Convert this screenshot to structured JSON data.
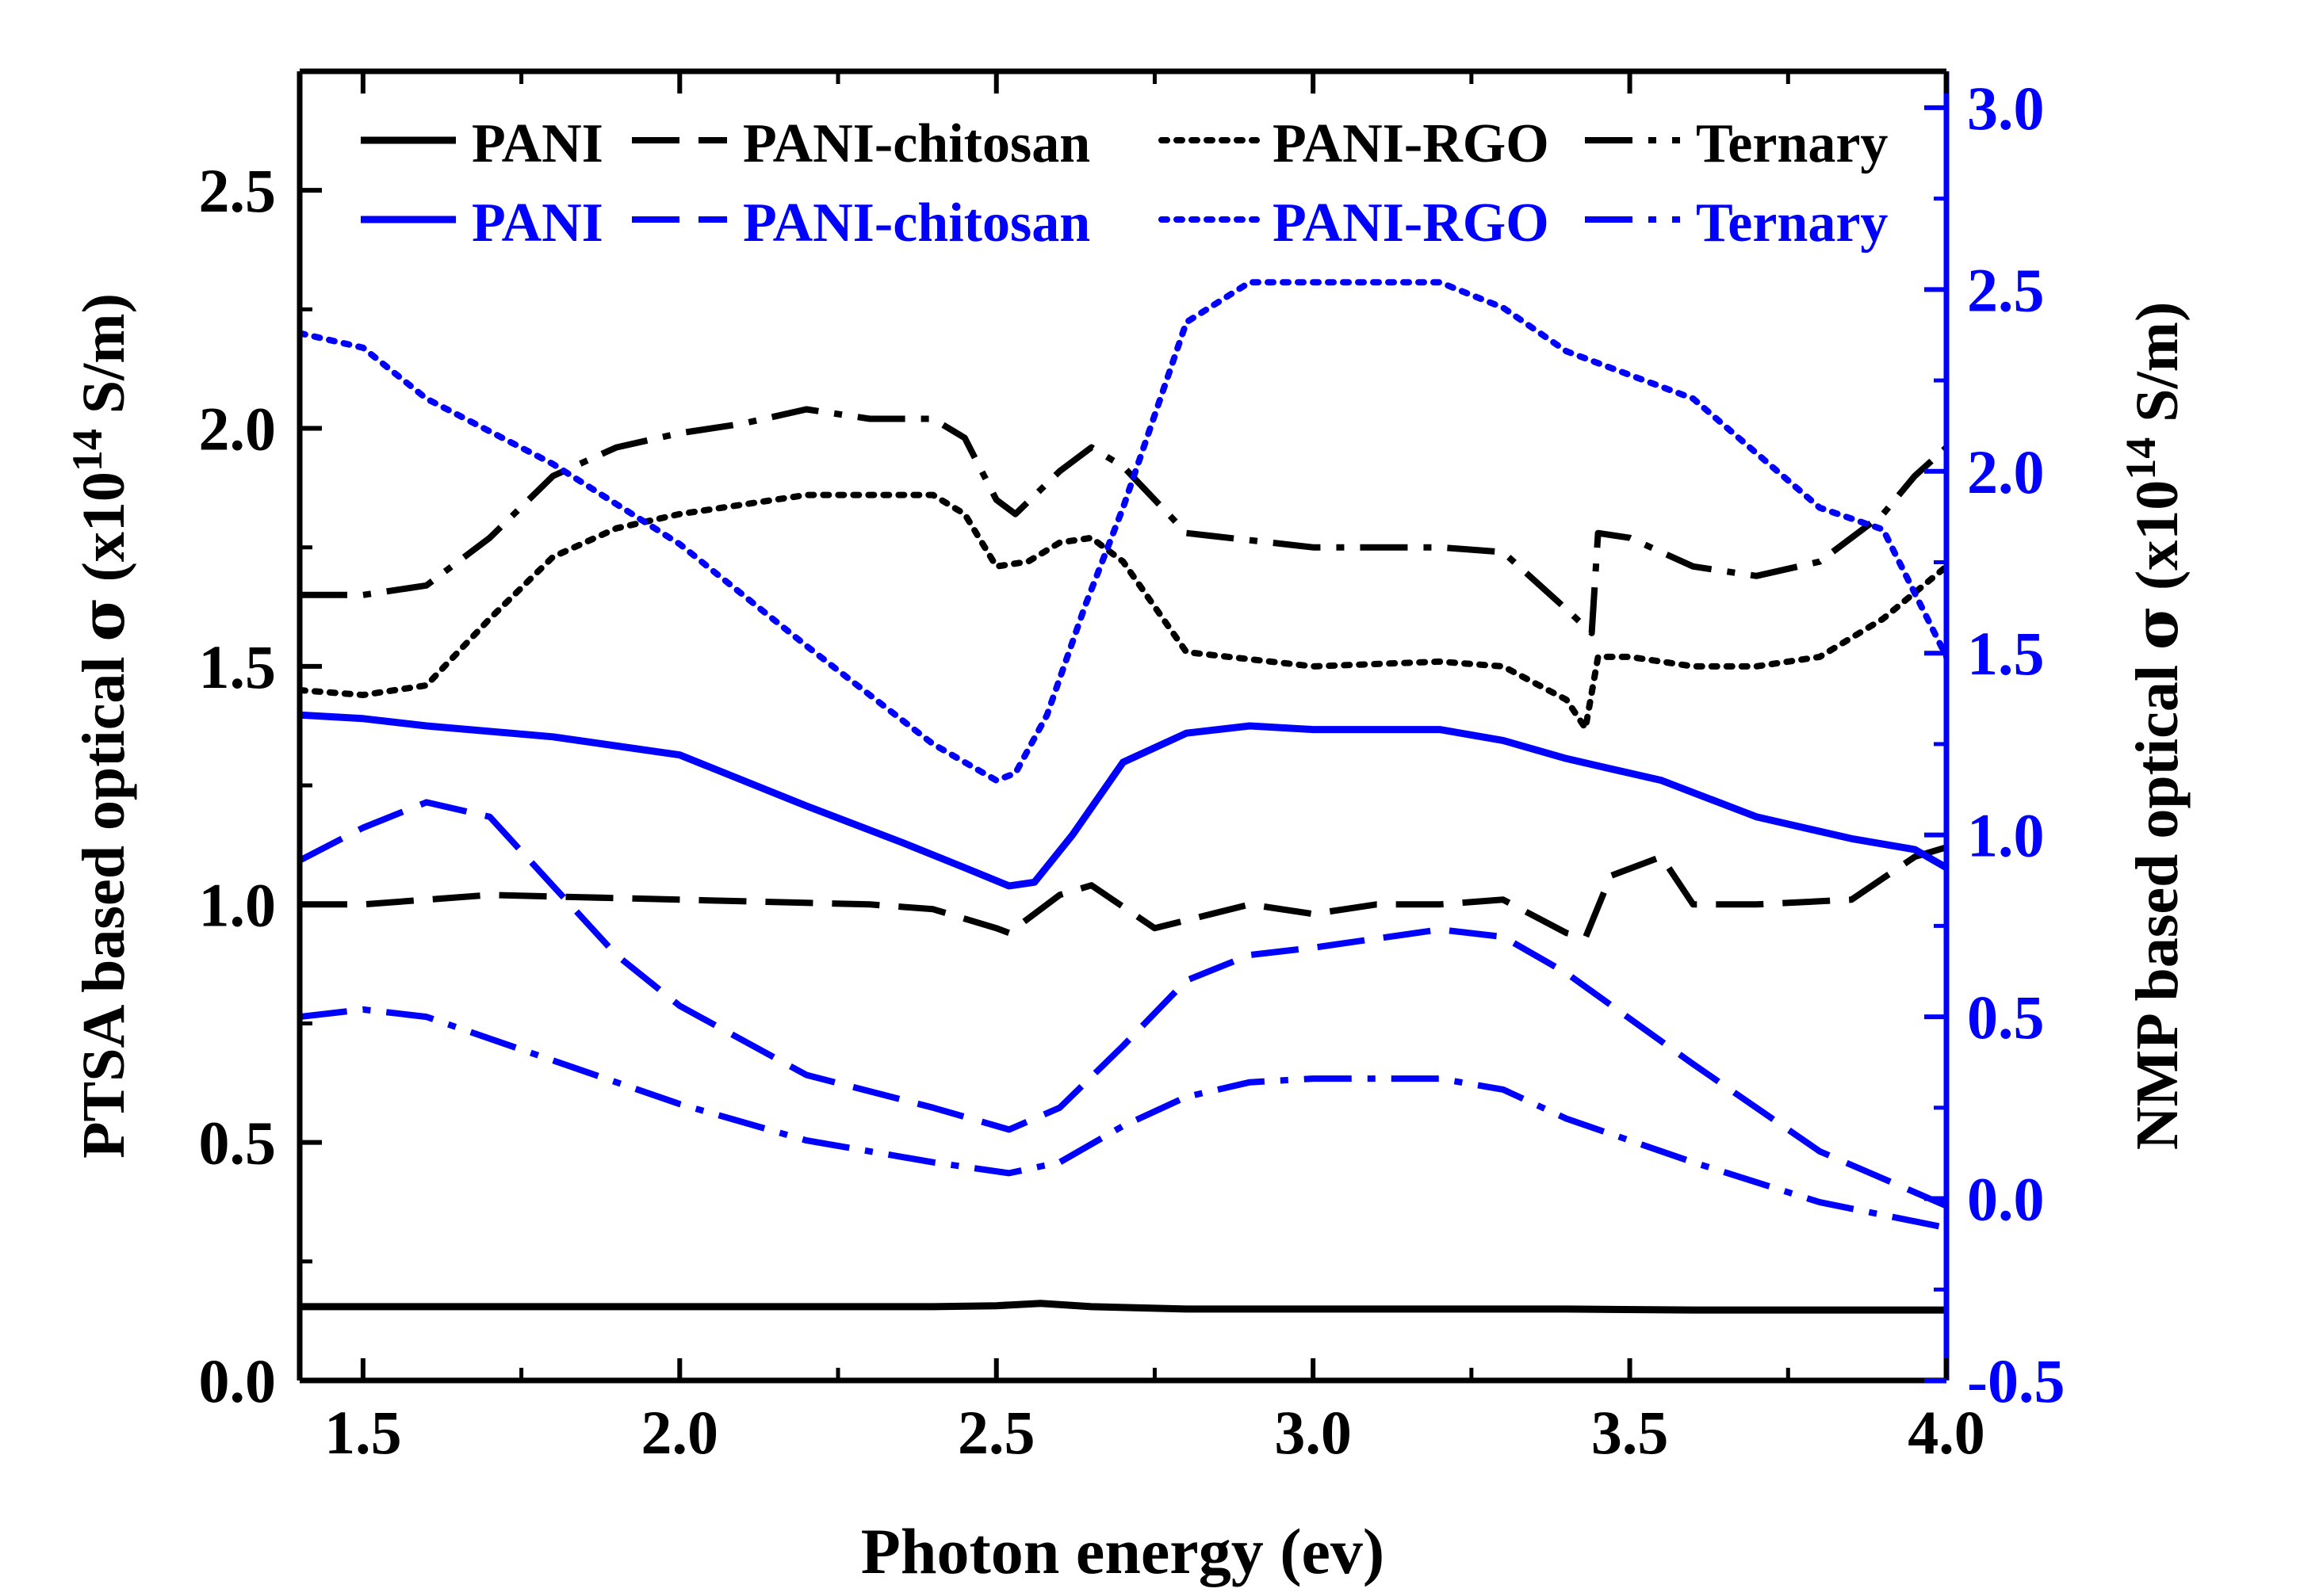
{
  "chart_data": {
    "type": "line",
    "xlabel": "Photon energy (ev)",
    "ylabel_left": {
      "pre": "PTSA based optical ",
      "sym": "σ",
      "mid": " (x10",
      "sup": "14",
      "post": " S/m)"
    },
    "ylabel_right": {
      "pre": "NMP based optical ",
      "sym": "σ",
      "mid": " (x10",
      "sup": "14",
      "post": " S/m)"
    },
    "xlim": [
      1.4,
      4.0
    ],
    "ylim_left": [
      0.0,
      2.75
    ],
    "ylim_right": [
      -0.5,
      3.1
    ],
    "x_ticks": [
      1.5,
      2.0,
      2.5,
      3.0,
      3.5,
      4.0
    ],
    "x_tick_labels": [
      "1.5",
      "2.0",
      "2.5",
      "3.0",
      "3.5",
      "4.0"
    ],
    "y_left_ticks": [
      0.0,
      0.5,
      1.0,
      1.5,
      2.0,
      2.5
    ],
    "y_left_tick_labels": [
      "0.0",
      "0.5",
      "1.0",
      "1.5",
      "2.0",
      "2.5"
    ],
    "y_right_ticks": [
      -0.5,
      0.0,
      0.5,
      1.0,
      1.5,
      2.0,
      2.5,
      3.0
    ],
    "y_right_tick_labels": [
      "-0.5",
      "0.0",
      "0.5",
      "1.0",
      "1.5",
      "2.0",
      "2.5",
      "3.0"
    ],
    "legend_position": "top",
    "colors": {
      "left_axis": "#000000",
      "right_axis": "#0000ff"
    },
    "series": [
      {
        "name": "PANI",
        "axis": "left",
        "color": "#000000",
        "style": "solid",
        "x": [
          1.4,
          1.6,
          1.8,
          2.0,
          2.2,
          2.4,
          2.5,
          2.57,
          2.65,
          2.8,
          3.0,
          3.2,
          3.4,
          3.6,
          3.8,
          4.0
        ],
        "y": [
          0.155,
          0.155,
          0.155,
          0.155,
          0.155,
          0.155,
          0.157,
          0.162,
          0.155,
          0.15,
          0.15,
          0.15,
          0.15,
          0.148,
          0.148,
          0.148
        ]
      },
      {
        "name": "PANI-chitosan",
        "axis": "left",
        "color": "#000000",
        "style": "dash",
        "x": [
          1.4,
          1.5,
          1.7,
          2.0,
          2.3,
          2.4,
          2.5,
          2.52,
          2.6,
          2.65,
          2.75,
          2.9,
          3.0,
          3.1,
          3.2,
          3.3,
          3.4,
          3.43,
          3.47,
          3.55,
          3.6,
          3.7,
          3.85,
          3.95,
          4.0
        ],
        "y": [
          1.0,
          1.0,
          1.02,
          1.01,
          1.0,
          0.99,
          0.95,
          0.94,
          1.02,
          1.04,
          0.95,
          1.0,
          0.98,
          1.0,
          1.0,
          1.01,
          0.94,
          0.93,
          1.06,
          1.1,
          1.0,
          1.0,
          1.01,
          1.1,
          1.12
        ]
      },
      {
        "name": "PANI-RGO",
        "axis": "left",
        "color": "#000000",
        "style": "dot",
        "x": [
          1.4,
          1.5,
          1.6,
          1.7,
          1.8,
          1.9,
          2.0,
          2.1,
          2.2,
          2.3,
          2.4,
          2.45,
          2.5,
          2.55,
          2.6,
          2.65,
          2.7,
          2.8,
          3.0,
          3.2,
          3.3,
          3.4,
          3.43,
          3.45,
          3.5,
          3.6,
          3.7,
          3.8,
          3.9,
          4.0
        ],
        "y": [
          1.45,
          1.44,
          1.46,
          1.6,
          1.73,
          1.79,
          1.82,
          1.84,
          1.86,
          1.86,
          1.86,
          1.82,
          1.71,
          1.72,
          1.76,
          1.77,
          1.72,
          1.53,
          1.5,
          1.51,
          1.5,
          1.43,
          1.37,
          1.52,
          1.52,
          1.5,
          1.5,
          1.52,
          1.6,
          1.71
        ]
      },
      {
        "name": "Ternary",
        "axis": "left",
        "color": "#000000",
        "style": "dashdot",
        "x": [
          1.4,
          1.5,
          1.6,
          1.7,
          1.8,
          1.9,
          2.0,
          2.1,
          2.2,
          2.3,
          2.4,
          2.45,
          2.5,
          2.53,
          2.6,
          2.65,
          2.7,
          2.8,
          3.0,
          3.2,
          3.3,
          3.4,
          3.44,
          3.45,
          3.5,
          3.6,
          3.7,
          3.8,
          3.9,
          3.95,
          4.0
        ],
        "y": [
          1.65,
          1.65,
          1.67,
          1.77,
          1.9,
          1.96,
          1.99,
          2.01,
          2.04,
          2.02,
          2.02,
          1.98,
          1.85,
          1.82,
          1.91,
          1.96,
          1.92,
          1.78,
          1.75,
          1.75,
          1.74,
          1.62,
          1.57,
          1.78,
          1.77,
          1.71,
          1.69,
          1.72,
          1.82,
          1.9,
          1.96
        ]
      },
      {
        "name": "PANI",
        "axis": "right",
        "color": "#0000ff",
        "style": "solid",
        "x": [
          1.4,
          1.5,
          1.6,
          1.8,
          2.0,
          2.2,
          2.35,
          2.45,
          2.52,
          2.56,
          2.62,
          2.7,
          2.8,
          2.9,
          3.0,
          3.2,
          3.3,
          3.4,
          3.55,
          3.7,
          3.85,
          3.95,
          4.0
        ],
        "y": [
          1.33,
          1.32,
          1.3,
          1.27,
          1.22,
          1.08,
          0.98,
          0.91,
          0.86,
          0.87,
          1.0,
          1.2,
          1.28,
          1.3,
          1.29,
          1.29,
          1.26,
          1.21,
          1.15,
          1.05,
          0.99,
          0.96,
          0.91
        ]
      },
      {
        "name": "PANI-chitosan",
        "axis": "right",
        "color": "#0000ff",
        "style": "dash",
        "x": [
          1.4,
          1.5,
          1.6,
          1.7,
          1.8,
          1.9,
          2.0,
          2.2,
          2.4,
          2.52,
          2.6,
          2.7,
          2.8,
          2.9,
          3.0,
          3.2,
          3.3,
          3.4,
          3.6,
          3.8,
          4.0
        ],
        "y": [
          0.93,
          1.02,
          1.09,
          1.05,
          0.86,
          0.67,
          0.53,
          0.34,
          0.25,
          0.19,
          0.25,
          0.42,
          0.6,
          0.67,
          0.69,
          0.74,
          0.72,
          0.62,
          0.37,
          0.13,
          -0.02
        ]
      },
      {
        "name": "PANI-RGO",
        "axis": "right",
        "color": "#0000ff",
        "style": "dot",
        "x": [
          1.4,
          1.5,
          1.6,
          1.8,
          2.0,
          2.2,
          2.4,
          2.5,
          2.53,
          2.58,
          2.64,
          2.7,
          2.8,
          2.9,
          3.0,
          3.2,
          3.3,
          3.4,
          3.6,
          3.8,
          3.9,
          4.0
        ],
        "y": [
          2.38,
          2.34,
          2.2,
          2.02,
          1.8,
          1.52,
          1.25,
          1.15,
          1.17,
          1.33,
          1.63,
          1.9,
          2.41,
          2.52,
          2.52,
          2.52,
          2.45,
          2.33,
          2.2,
          1.9,
          1.84,
          1.49
        ]
      },
      {
        "name": "Ternary",
        "axis": "right",
        "color": "#0000ff",
        "style": "dashdot",
        "x": [
          1.4,
          1.5,
          1.6,
          1.8,
          2.0,
          2.2,
          2.4,
          2.52,
          2.6,
          2.7,
          2.8,
          2.9,
          3.0,
          3.2,
          3.3,
          3.4,
          3.6,
          3.8,
          4.0
        ],
        "y": [
          0.5,
          0.52,
          0.5,
          0.38,
          0.26,
          0.16,
          0.1,
          0.07,
          0.1,
          0.2,
          0.28,
          0.32,
          0.33,
          0.33,
          0.3,
          0.22,
          0.1,
          -0.01,
          -0.08
        ]
      }
    ]
  }
}
